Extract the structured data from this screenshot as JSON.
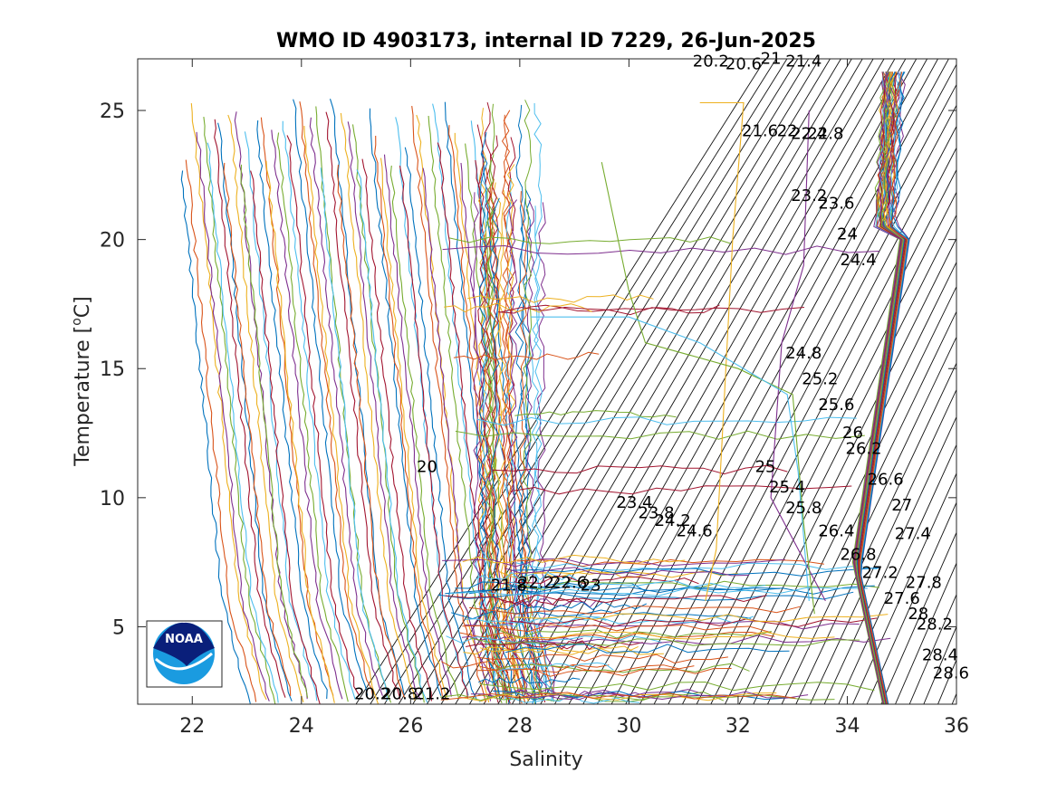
{
  "chart_data": {
    "type": "line",
    "title": "WMO ID 4903173, internal ID 7229, 26-Jun-2025",
    "xlabel": "Salinity",
    "ylabel_main": "Temperature [",
    "ylabel_sup": "o",
    "ylabel_end": "C]",
    "xlim": [
      21,
      36
    ],
    "ylim": [
      2,
      27
    ],
    "xticks": [
      22,
      24,
      26,
      28,
      30,
      32,
      34,
      36
    ],
    "yticks": [
      5,
      10,
      15,
      20,
      25
    ],
    "grid": false,
    "density_contour_labels": [
      {
        "text": "20.2",
        "s": 31.5,
        "t": 26.7
      },
      {
        "text": "20.6",
        "s": 32.1,
        "t": 26.6
      },
      {
        "text": "21",
        "s": 32.6,
        "t": 26.8
      },
      {
        "text": "21.4",
        "s": 33.2,
        "t": 26.7
      },
      {
        "text": "21.6",
        "s": 32.4,
        "t": 24.0
      },
      {
        "text": "22",
        "s": 32.9,
        "t": 24.0
      },
      {
        "text": "22.4",
        "s": 33.3,
        "t": 23.9
      },
      {
        "text": "22.8",
        "s": 33.6,
        "t": 23.9
      },
      {
        "text": "23.2",
        "s": 33.3,
        "t": 21.5
      },
      {
        "text": "23.6",
        "s": 33.8,
        "t": 21.2
      },
      {
        "text": "24",
        "s": 34.0,
        "t": 20.0
      },
      {
        "text": "24.4",
        "s": 34.2,
        "t": 19.0
      },
      {
        "text": "24.8",
        "s": 33.2,
        "t": 15.4
      },
      {
        "text": "25.2",
        "s": 33.5,
        "t": 14.4
      },
      {
        "text": "25.6",
        "s": 33.8,
        "t": 13.4
      },
      {
        "text": "26",
        "s": 34.1,
        "t": 12.3
      },
      {
        "text": "26.2",
        "s": 34.3,
        "t": 11.7
      },
      {
        "text": "26.6",
        "s": 34.7,
        "t": 10.5
      },
      {
        "text": "27",
        "s": 35.0,
        "t": 9.5
      },
      {
        "text": "27.4",
        "s": 35.2,
        "t": 8.4
      },
      {
        "text": "27.6",
        "s": 35.0,
        "t": 5.9
      },
      {
        "text": "27.8",
        "s": 35.4,
        "t": 6.5
      },
      {
        "text": "28",
        "s": 35.3,
        "t": 5.3
      },
      {
        "text": "28.2",
        "s": 35.6,
        "t": 4.9
      },
      {
        "text": "28.4",
        "s": 35.7,
        "t": 3.7
      },
      {
        "text": "28.6",
        "s": 35.9,
        "t": 3.0
      },
      {
        "text": "20",
        "s": 26.3,
        "t": 11.0
      },
      {
        "text": "25",
        "s": 32.5,
        "t": 11.0
      },
      {
        "text": "25.4",
        "s": 32.9,
        "t": 10.2
      },
      {
        "text": "25.8",
        "s": 33.2,
        "t": 9.4
      },
      {
        "text": "26.4",
        "s": 33.8,
        "t": 8.5
      },
      {
        "text": "26.8",
        "s": 34.2,
        "t": 7.6
      },
      {
        "text": "27.2",
        "s": 34.6,
        "t": 6.9
      },
      {
        "text": "23.4",
        "s": 30.1,
        "t": 9.6
      },
      {
        "text": "23.8",
        "s": 30.5,
        "t": 9.2
      },
      {
        "text": "24.2",
        "s": 30.8,
        "t": 8.9
      },
      {
        "text": "24.6",
        "s": 31.2,
        "t": 8.5
      },
      {
        "text": "21.8",
        "s": 27.8,
        "t": 6.4
      },
      {
        "text": "22.2",
        "s": 28.3,
        "t": 6.5
      },
      {
        "text": "22.6",
        "s": 28.9,
        "t": 6.5
      },
      {
        "text": "23",
        "s": 29.3,
        "t": 6.4
      },
      {
        "text": "20.2",
        "s": 25.3,
        "t": 2.2
      },
      {
        "text": "20.8",
        "s": 25.8,
        "t": 2.2
      },
      {
        "text": "21.2",
        "s": 26.4,
        "t": 2.2
      }
    ],
    "series_colors": [
      "#0072BD",
      "#D95319",
      "#EDB120",
      "#7E2F8E",
      "#77AC30",
      "#4DBEEE",
      "#A2142F"
    ],
    "profile_groups": {
      "fresh_start_salinity": 21.8,
      "fresh_end_salinity": 27.4,
      "fresh_count": 58,
      "mid_start_salinity": 27.2,
      "mid_end_salinity": 28.4,
      "deep_salinity_range": [
        34.1,
        35.0
      ]
    }
  },
  "logo": {
    "text": "NOAA",
    "label": "noaa-logo"
  }
}
